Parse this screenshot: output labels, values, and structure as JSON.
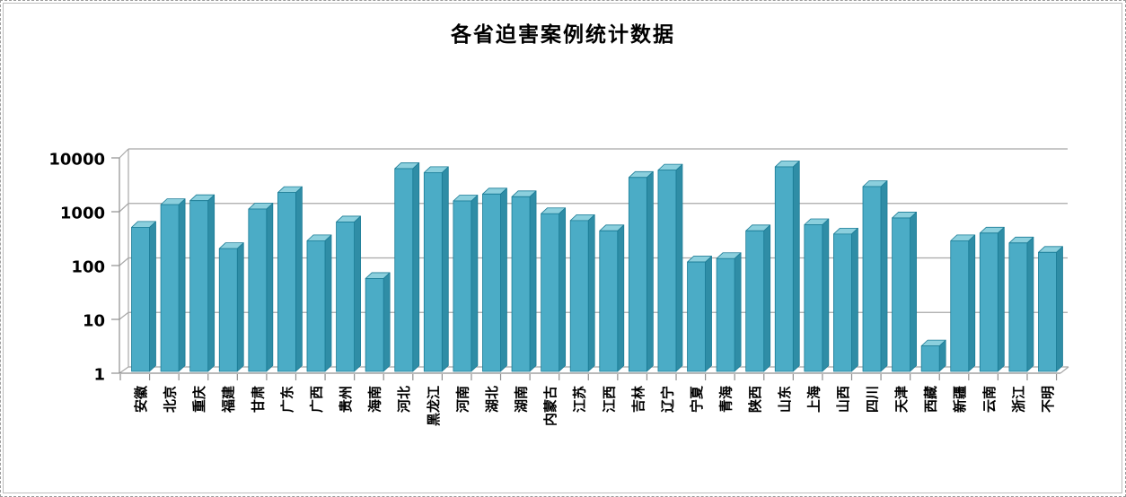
{
  "chart_data": {
    "type": "bar",
    "title": "各省迫害案例统计数据",
    "xlabel": "",
    "ylabel": "",
    "legend": "none",
    "grid": "horizontal",
    "effect": "3d",
    "y_axis": {
      "scale": "log",
      "range": [
        1,
        10000
      ],
      "ticks": [
        1,
        10,
        100,
        1000,
        10000
      ],
      "tick_labels": [
        "1",
        "10",
        "100",
        "1000",
        "10000"
      ]
    },
    "categories": [
      "安徽",
      "北京",
      "重庆",
      "福建",
      "甘肃",
      "广东",
      "广西",
      "贵州",
      "海南",
      "河北",
      "黑龙江",
      "河南",
      "湖北",
      "湖南",
      "内蒙古",
      "江苏",
      "江西",
      "吉林",
      "辽宁",
      "宁夏",
      "青海",
      "陕西",
      "山东",
      "上海",
      "山西",
      "四川",
      "天津",
      "西藏",
      "新疆",
      "云南",
      "浙江",
      "不明"
    ],
    "values": [
      500,
      1330,
      1580,
      200,
      1100,
      2240,
      280,
      630,
      55,
      6300,
      5300,
      1560,
      2100,
      1870,
      900,
      670,
      430,
      4300,
      5900,
      112,
      130,
      430,
      6800,
      560,
      375,
      2900,
      750,
      3,
      280,
      390,
      255,
      170
    ],
    "style": {
      "bar_front_color": "#4bacc6",
      "bar_top_color": "#8bcfdd",
      "bar_side_color": "#2f8da6",
      "bar_outline_color": "#1b7c96",
      "gridline_color": "#a8a8a8",
      "axis_color": "#8f8f8f",
      "title_color": "#000000",
      "label_color": "#000000"
    }
  }
}
